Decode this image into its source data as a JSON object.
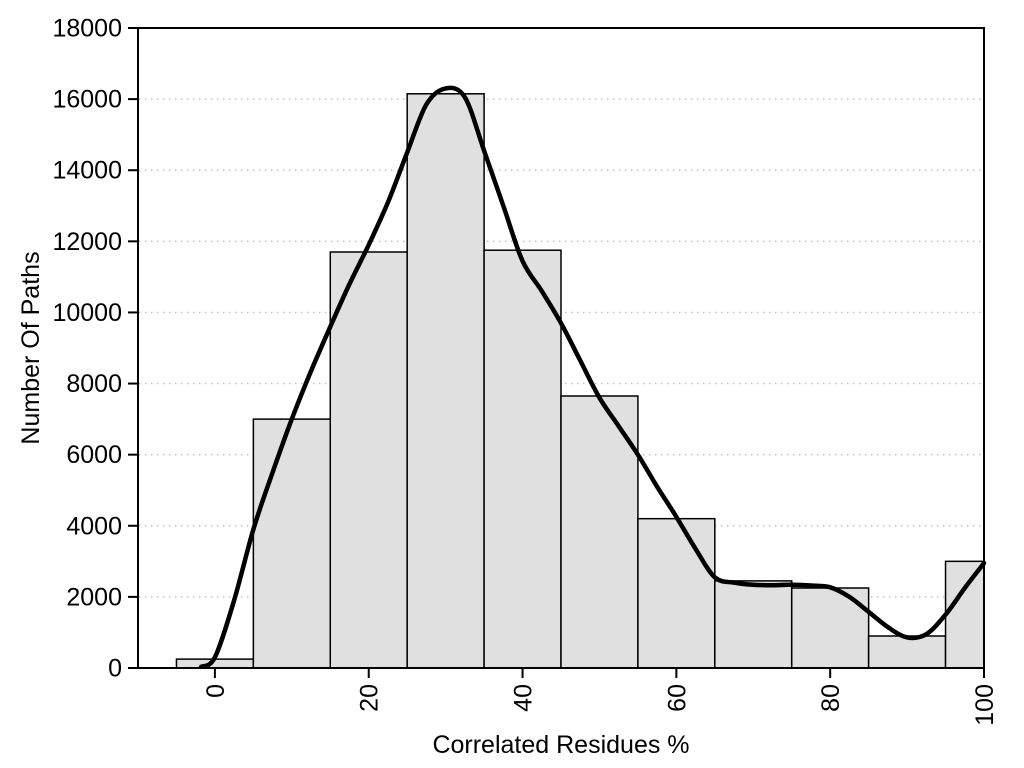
{
  "chart_data": {
    "type": "bar",
    "subtype": "histogram-with-fit-curve",
    "title": "",
    "xlabel": "Correlated Residues %",
    "ylabel": "Number Of Paths",
    "xlim": [
      -10,
      100
    ],
    "ylim": [
      0,
      18000
    ],
    "x_ticks": [
      0,
      20,
      40,
      60,
      80,
      100
    ],
    "y_ticks": [
      0,
      2000,
      4000,
      6000,
      8000,
      10000,
      12000,
      14000,
      16000,
      18000
    ],
    "grid": "horizontal-dotted",
    "grid_color": "#b8b8b8",
    "background_color": "#ffffff",
    "axis_color": "#000000",
    "bars": {
      "centers": [
        0,
        10,
        20,
        30,
        40,
        50,
        60,
        70,
        80,
        90,
        100
      ],
      "bin_width": 10,
      "values": [
        250,
        7000,
        11700,
        16150,
        11750,
        7650,
        4200,
        2450,
        2250,
        900,
        3000
      ],
      "fill": "#e0e0e0",
      "stroke": "#000000"
    },
    "series": [
      {
        "name": "fit-curve",
        "type": "line",
        "color": "#000000",
        "stroke_width": 4.5,
        "points": [
          [
            -1.8,
            30
          ],
          [
            0,
            300
          ],
          [
            2.5,
            1900
          ],
          [
            5,
            3900
          ],
          [
            7.5,
            5500
          ],
          [
            10,
            7000
          ],
          [
            12.5,
            8350
          ],
          [
            15,
            9600
          ],
          [
            17.5,
            10800
          ],
          [
            20,
            11900
          ],
          [
            22.5,
            13100
          ],
          [
            25,
            14500
          ],
          [
            27.5,
            15850
          ],
          [
            30,
            16300
          ],
          [
            32.5,
            16050
          ],
          [
            35,
            14550
          ],
          [
            37.5,
            13000
          ],
          [
            40,
            11450
          ],
          [
            42.5,
            10600
          ],
          [
            45,
            9700
          ],
          [
            47.5,
            8650
          ],
          [
            50,
            7600
          ],
          [
            52.5,
            6800
          ],
          [
            55,
            6000
          ],
          [
            57.5,
            5100
          ],
          [
            60,
            4250
          ],
          [
            62.5,
            3350
          ],
          [
            65,
            2550
          ],
          [
            67.5,
            2400
          ],
          [
            70,
            2340
          ],
          [
            72.5,
            2330
          ],
          [
            75,
            2340
          ],
          [
            77.5,
            2320
          ],
          [
            80,
            2270
          ],
          [
            82.5,
            2000
          ],
          [
            85,
            1580
          ],
          [
            87.5,
            1150
          ],
          [
            90,
            860
          ],
          [
            92.5,
            950
          ],
          [
            95,
            1500
          ],
          [
            97.5,
            2250
          ],
          [
            100,
            2950
          ]
        ]
      }
    ],
    "legend": "none"
  }
}
